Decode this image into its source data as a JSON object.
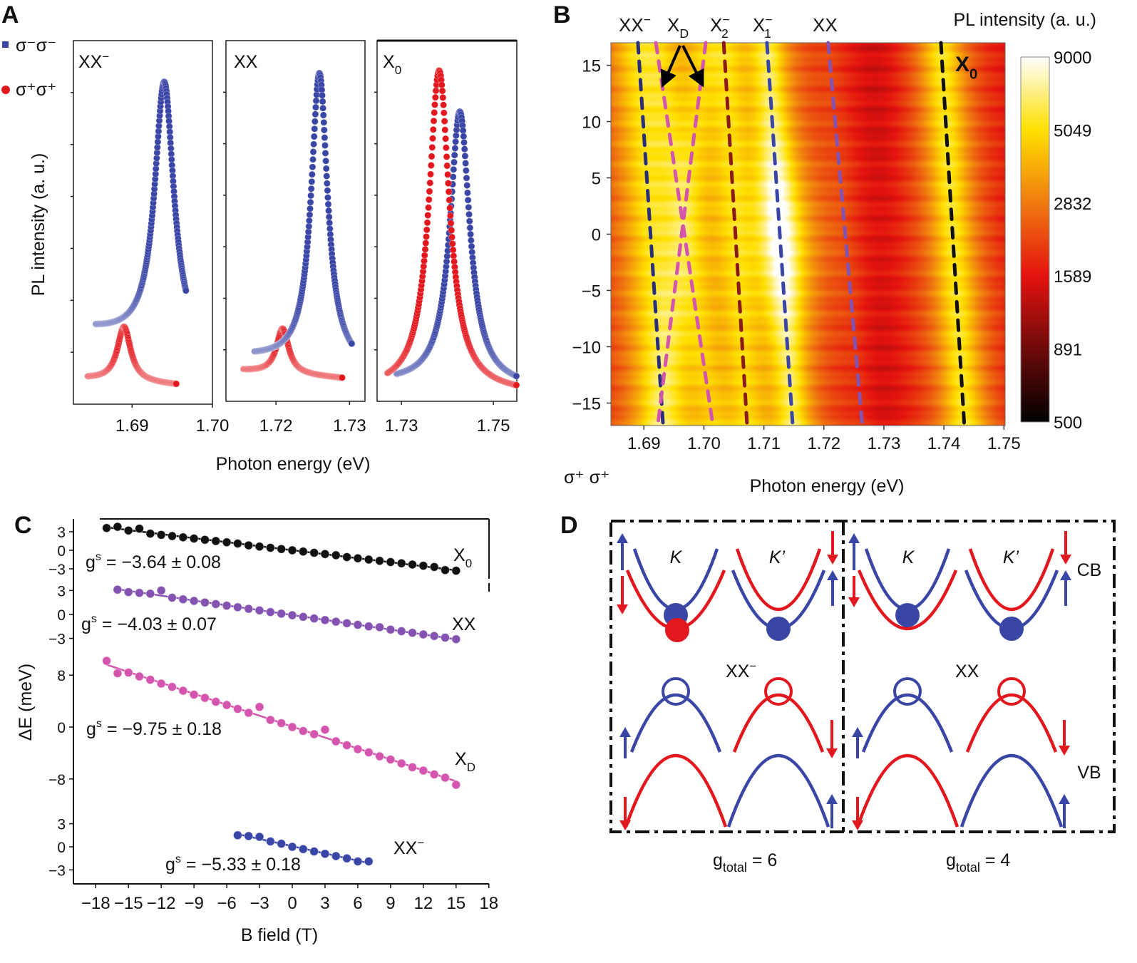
{
  "panel_letters": {
    "a": "A",
    "b": "B",
    "c": "C",
    "d": "D"
  },
  "colors": {
    "blue": "#3a46a6",
    "red": "#e3171e",
    "navy": "#2a2f7c",
    "pink": "#d455ad",
    "darkred": "#8b1a1a",
    "purple": "#8452b0",
    "black": "#111111"
  },
  "chart_data": [
    {
      "panel": "A",
      "type": "scatter",
      "ylabel": "PL intensity (a. u.)",
      "xlabel": "Photon energy (eV)",
      "legend": [
        {
          "label": "σ⁻σ⁻",
          "color": "#3a46a6",
          "marker": "square"
        },
        {
          "label": "σ⁺σ⁺",
          "color": "#e3171e",
          "marker": "circle"
        }
      ],
      "subplots": [
        {
          "label": "XX",
          "label_sup": "−",
          "label_sub": "",
          "xlim": [
            1.6827,
            1.7
          ],
          "ylim": [
            0,
            1
          ],
          "xticks": [
            "1.69",
            "1.70"
          ],
          "xtick_values": [
            1.69,
            1.7
          ],
          "peaks": [
            {
              "series": "σ⁻σ⁻",
              "center_eV": 1.694,
              "fwhm_eV": 0.0029,
              "peak": 0.925,
              "baseline": 0.2,
              "range_eV": [
                1.6855,
                1.6967
              ]
            },
            {
              "series": "σ⁺σ⁺",
              "center_eV": 1.689,
              "fwhm_eV": 0.002,
              "peak": 0.22,
              "baseline": 0.07,
              "range_eV": [
                1.6845,
                1.6955
              ]
            }
          ]
        },
        {
          "label": "XX",
          "label_sup": "",
          "label_sub": "",
          "xlim": [
            1.7132,
            1.7321
          ],
          "ylim": [
            0,
            1
          ],
          "xticks": [
            "1.72",
            "1.73"
          ],
          "xtick_values": [
            1.72,
            1.73
          ],
          "peaks": [
            {
              "series": "σ⁻σ⁻",
              "center_eV": 1.7259,
              "fwhm_eV": 0.0027,
              "peak": 0.93,
              "baseline": 0.12,
              "range_eV": [
                1.7171,
                1.7303
              ]
            },
            {
              "series": "σ⁺σ⁺",
              "center_eV": 1.7209,
              "fwhm_eV": 0.002,
              "peak": 0.21,
              "baseline": 0.085,
              "range_eV": [
                1.7156,
                1.729
              ]
            }
          ]
        },
        {
          "label": "X",
          "label_sup": "",
          "label_sub": "0",
          "xlim": [
            1.7247,
            1.7551
          ],
          "ylim": [
            0,
            1
          ],
          "xticks": [
            "1.73",
            "1.75"
          ],
          "xtick_values": [
            1.73,
            1.75
          ],
          "peaks": [
            {
              "series": "σ⁻σ⁻",
              "center_eV": 1.7427,
              "fwhm_eV": 0.0052,
              "peak": 0.81,
              "baseline": 0.05,
              "range_eV": [
                1.729,
                1.755
              ]
            },
            {
              "series": "σ⁺σ⁺",
              "center_eV": 1.7382,
              "fwhm_eV": 0.0054,
              "peak": 0.92,
              "baseline": 0.03,
              "range_eV": [
                1.727,
                1.755
              ]
            }
          ]
        }
      ]
    },
    {
      "panel": "B",
      "type": "heatmap",
      "xlabel": "Photon energy (eV)",
      "corner_label": "σ⁺ σ⁺",
      "colorbar_title": "PL intensity (a. u.)",
      "xlim": [
        1.6845,
        1.7502
      ],
      "ylim": [
        -17,
        17
      ],
      "xticks": [
        "1.69",
        "1.70",
        "1.71",
        "1.72",
        "1.73",
        "1.74",
        "1.75"
      ],
      "xtick_values": [
        1.69,
        1.7,
        1.71,
        1.72,
        1.73,
        1.74,
        1.75
      ],
      "yticks": [
        "15",
        "10",
        "5",
        "0",
        "−5",
        "−10",
        "−15"
      ],
      "ytick_values": [
        15,
        10,
        5,
        0,
        -5,
        -10,
        -15
      ],
      "colorbar": {
        "scale": "log",
        "ticks": [
          "9000",
          "5049",
          "2832",
          "1589",
          "891",
          "500"
        ],
        "tick_values": [
          9000,
          5049,
          2832,
          1589,
          891,
          500
        ],
        "range": [
          500,
          9000
        ],
        "colormap": [
          "#000000",
          "#6e0a0a",
          "#e4120f",
          "#f07a10",
          "#ffe000",
          "#ffffff"
        ]
      },
      "background_intensity": 1300,
      "lines": [
        {
          "label": "XX",
          "sup": "−",
          "sub": "",
          "color": "#2a2f7c",
          "energy_at_B_plus17": 1.689,
          "energy_at_B_minus17": 1.6932,
          "intensity": 3000,
          "fwhm_eV": 0.008
        },
        {
          "label": "X",
          "sup": "",
          "sub": "D",
          "color": "#d455ad",
          "energy_at_B_plus17": 1.692,
          "energy_at_B_minus17": 1.7015,
          "intensity": 1800,
          "fwhm_eV": 0.006
        },
        {
          "label": "",
          "sup": "",
          "sub": "",
          "color": "#d455ad",
          "energy_at_B_plus17": 1.7003,
          "energy_at_B_minus17": 1.6923,
          "intensity": 1800,
          "fwhm_eV": 0.006
        },
        {
          "label": "X",
          "sup": "−",
          "sub": "2",
          "color": "#8b1a1a",
          "energy_at_B_plus17": 1.7033,
          "energy_at_B_minus17": 1.7072,
          "intensity": 2500,
          "fwhm_eV": 0.006
        },
        {
          "label": "X",
          "sup": "−",
          "sub": "1",
          "color": "#3a46a6",
          "energy_at_B_plus17": 1.7105,
          "energy_at_B_minus17": 1.7148,
          "intensity": 6000,
          "fwhm_eV": 0.005
        },
        {
          "label": "XX",
          "sup": "",
          "sub": "",
          "color": "#8452b0",
          "energy_at_B_plus17": 1.7207,
          "energy_at_B_minus17": 1.7264,
          "intensity": 300,
          "fwhm_eV": 0.006
        },
        {
          "label": "X",
          "sup": "",
          "sub": "0",
          "color": "#111111",
          "energy_at_B_plus17": 1.7395,
          "energy_at_B_minus17": 1.7434,
          "intensity": 4000,
          "fwhm_eV": 0.006
        }
      ]
    },
    {
      "panel": "C",
      "type": "scatter",
      "ylabel": "ΔE (meV)",
      "xlabel": "B field (T)",
      "xlim": [
        -18,
        18
      ],
      "xticks": [
        "−18",
        "−15",
        "−12",
        "−9",
        "−6",
        "−3",
        "0",
        "3",
        "6",
        "9",
        "12",
        "15",
        "18"
      ],
      "xtick_values": [
        -18,
        -15,
        -12,
        -9,
        -6,
        -3,
        0,
        3,
        6,
        9,
        12,
        15,
        18
      ],
      "series": [
        {
          "name": "X",
          "name_sub": "0",
          "name_sup": "",
          "g_label": "g",
          "g_sup": "s",
          "g_text": " = −3.64 ± 0.08",
          "color": "#111111",
          "yticks": [
            "3",
            "0",
            "−3"
          ],
          "ytick_values": [
            3,
            0,
            -3
          ],
          "B": [
            -17,
            -16,
            -15,
            -14,
            -13,
            -12,
            -11,
            -10,
            -9,
            -8,
            -7,
            -6,
            -5,
            -4,
            -3,
            -2,
            -1,
            0,
            1,
            2,
            3,
            4,
            5,
            6,
            7,
            8,
            9,
            10,
            11,
            12,
            13,
            14,
            15
          ],
          "dE": [
            3.6,
            3.8,
            3.2,
            3.5,
            2.7,
            2.5,
            2.3,
            2.1,
            1.9,
            1.7,
            1.5,
            1.3,
            1.1,
            0.8,
            0.6,
            0.4,
            0.2,
            0.0,
            -0.2,
            -0.4,
            -0.6,
            -0.8,
            -1.1,
            -1.3,
            -1.5,
            -1.7,
            -1.9,
            -2.1,
            -2.3,
            -2.5,
            -2.7,
            -3.2,
            -3.3
          ]
        },
        {
          "name": "XX",
          "name_sub": "",
          "name_sup": "",
          "g_label": "g",
          "g_sup": "s",
          "g_text": " = −4.03 ± 0.07",
          "color": "#8452b0",
          "yticks": [
            "3",
            "0",
            "−3"
          ],
          "ytick_values": [
            3,
            0,
            -3
          ],
          "B": [
            -16,
            -15,
            -14,
            -13,
            -12,
            -11,
            -10,
            -9,
            -8,
            -7,
            -6,
            -5,
            -4,
            -3,
            -2,
            -1,
            0,
            1,
            2,
            3,
            4,
            5,
            6,
            7,
            8,
            9,
            10,
            11,
            12,
            13,
            14,
            15
          ],
          "dE": [
            3.1,
            2.8,
            2.7,
            2.6,
            3.0,
            2.1,
            1.9,
            1.7,
            1.5,
            1.3,
            1.1,
            0.9,
            0.7,
            0.5,
            0.3,
            0.1,
            -0.1,
            -0.3,
            -0.5,
            -0.7,
            -0.9,
            -1.1,
            -1.3,
            -1.5,
            -1.6,
            -1.9,
            -2.1,
            -2.3,
            -2.5,
            -2.7,
            -2.9,
            -3.1
          ]
        },
        {
          "name": "X",
          "name_sub": "D",
          "name_sup": "",
          "g_label": "g",
          "g_sup": "s",
          "g_text": " = −9.75 ± 0.18",
          "color": "#d455ad",
          "yticks": [
            "8",
            "0",
            "−8"
          ],
          "ytick_values": [
            8,
            0,
            -8
          ],
          "B": [
            -17,
            -16,
            -15,
            -14,
            -13,
            -12,
            -11,
            -10,
            -9,
            -8,
            -7,
            -6,
            -5,
            -4,
            -3,
            -2,
            -1,
            0,
            1,
            2,
            3,
            4,
            5,
            6,
            7,
            8,
            9,
            10,
            11,
            12,
            13,
            14,
            15
          ],
          "dE": [
            10.2,
            8.3,
            8.4,
            7.8,
            7.3,
            6.7,
            6.2,
            5.6,
            5.0,
            4.5,
            3.9,
            3.4,
            2.8,
            2.2,
            3.1,
            1.1,
            0.6,
            0.0,
            -0.6,
            -1.1,
            -0.4,
            -2.2,
            -2.8,
            -3.4,
            -3.9,
            -4.5,
            -5.0,
            -5.6,
            -6.2,
            -6.7,
            -7.3,
            -7.8,
            -8.9
          ]
        },
        {
          "name": "XX",
          "name_sub": "",
          "name_sup": "−",
          "g_label": "g",
          "g_sup": "s",
          "g_text": " = −5.33 ± 0.18",
          "color": "#3a46a6",
          "yticks": [
            "3",
            "0",
            "−3"
          ],
          "ytick_values": [
            3,
            0,
            -3
          ],
          "B": [
            -5,
            -4,
            -3,
            -2,
            -1,
            0,
            1,
            2,
            3,
            4,
            5,
            6,
            7
          ],
          "dE": [
            1.5,
            1.4,
            1.3,
            0.7,
            0.4,
            0.0,
            -0.3,
            -0.6,
            -0.9,
            -1.2,
            -1.5,
            -1.9,
            -1.9
          ]
        }
      ]
    }
  ],
  "diagram": {
    "left": {
      "title": "XX",
      "title_sup": "−",
      "valley_k": "K",
      "valley_kp": "K’",
      "caption_g": "g",
      "caption_sub": "total",
      "caption_text": " = 6"
    },
    "right": {
      "title": "XX",
      "title_sup": "",
      "valley_k": "K",
      "valley_kp": "K’",
      "caption_g": "g",
      "caption_sub": "total",
      "caption_text": " = 4"
    },
    "cb_label": "CB",
    "vb_label": "VB"
  }
}
